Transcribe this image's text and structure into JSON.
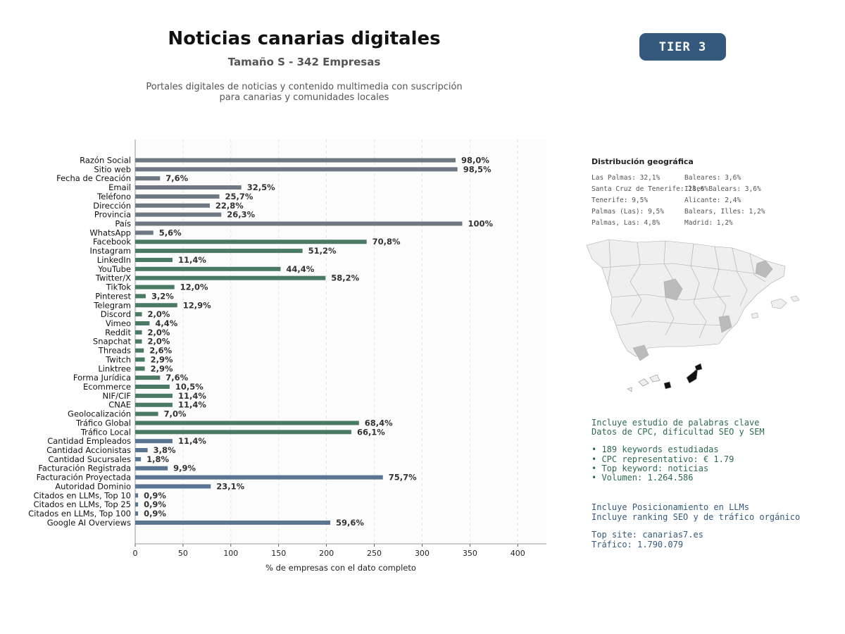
{
  "header": {
    "title": "Noticias canarias digitales",
    "subtitle": "Tamaño S - 342 Empresas",
    "description": "Portales digitales de noticias y contenido multimedia con suscripción\npara canarias y comunidades locales",
    "tier": "TIER 3"
  },
  "colors": {
    "group_basic": "#6e7883",
    "group_social": "#4a7a64",
    "group_business": "#5a7592",
    "badge": "#34597c",
    "info_green": "#2d6a4f",
    "info_blue": "#34597c",
    "map_highlight_dark": "#111111",
    "map_highlight_light": "#bbbbbb",
    "map_base": "#eeeeee"
  },
  "chart_data": {
    "type": "bar",
    "orientation": "horizontal",
    "xlabel": "% de empresas con el dato completo",
    "xlim": [
      0,
      430
    ],
    "xticks": [
      0,
      50,
      100,
      150,
      200,
      250,
      300,
      350,
      400
    ],
    "grid": "vertical dashed",
    "categories": [
      "Razón Social",
      "Sitio web",
      "Fecha de Creación",
      "Email",
      "Teléfono",
      "Dirección",
      "Provincia",
      "País",
      "WhatsApp",
      "Facebook",
      "Instagram",
      "LinkedIn",
      "YouTube",
      "Twitter/X",
      "TikTok",
      "Pinterest",
      "Telegram",
      "Discord",
      "Vimeo",
      "Reddit",
      "Snapchat",
      "Threads",
      "Twitch",
      "Linktree",
      "Forma Jurídica",
      "Ecommerce",
      "NIF/CIF",
      "CNAE",
      "Geolocalización",
      "Tráfico Global",
      "Tráfico Local",
      "Cantidad Empleados",
      "Cantidad Accionistas",
      "Cantidad Sucursales",
      "Facturación Registrada",
      "Facturación Proyectada",
      "Autoridad Dominio",
      "Citados en LLMs, Top 10",
      "Citados en LLMs, Top 25",
      "Citados en LLMs, Top 100",
      "Google AI Overviews"
    ],
    "values": [
      335,
      337,
      26,
      111,
      88,
      78,
      90,
      342,
      19,
      242,
      175,
      39,
      152,
      199,
      41,
      11,
      44,
      7,
      15,
      7,
      7,
      9,
      10,
      10,
      26,
      36,
      39,
      39,
      24,
      234,
      226,
      39,
      13,
      6,
      34,
      259,
      79,
      3,
      3,
      3,
      204
    ],
    "labels": [
      "98,0%",
      "98,5%",
      "7,6%",
      "32,5%",
      "25,7%",
      "22,8%",
      "26,3%",
      "100%",
      "5,6%",
      "70,8%",
      "51,2%",
      "11,4%",
      "44,4%",
      "58,2%",
      "12,0%",
      "3,2%",
      "12,9%",
      "2,0%",
      "4,4%",
      "2,0%",
      "2,0%",
      "2,6%",
      "2,9%",
      "2,9%",
      "7,6%",
      "10,5%",
      "11,4%",
      "11,4%",
      "7,0%",
      "68,4%",
      "66,1%",
      "11,4%",
      "3,8%",
      "1,8%",
      "9,9%",
      "75,7%",
      "23,1%",
      "0,9%",
      "0,9%",
      "0,9%",
      "59,6%"
    ],
    "groups": [
      "basic",
      "basic",
      "basic",
      "basic",
      "basic",
      "basic",
      "basic",
      "basic",
      "basic",
      "social",
      "social",
      "social",
      "social",
      "social",
      "social",
      "social",
      "social",
      "social",
      "social",
      "social",
      "social",
      "social",
      "social",
      "social",
      "social",
      "social",
      "social",
      "social",
      "social",
      "social",
      "social",
      "business",
      "business",
      "business",
      "business",
      "business",
      "business",
      "business",
      "business",
      "business",
      "business"
    ]
  },
  "geo": {
    "title": "Distribución geográfica",
    "left": [
      "Las Palmas: 32,1%",
      "Santa Cruz de Tenerife: 28,6%",
      "Tenerife: 9,5%",
      "Palmas (Las): 9,5%",
      "Palmas, Las: 4,8%"
    ],
    "right": [
      "Baleares: 3,6%",
      "Illes Balears: 3,6%",
      "Alicante: 2,4%",
      "Balears, Illes: 1,2%",
      "Madrid: 1,2%"
    ]
  },
  "keywords": {
    "line1": "Incluye estudio de palabras clave",
    "line2": "Datos de CPC, dificultad SEO y SEM",
    "bullets": [
      "• 189 keywords estudiadas",
      "• CPC representativo: € 1.79",
      "• Top keyword: noticias",
      "• Volumen: 1.264.586"
    ]
  },
  "llm": {
    "line1": "Incluye Posicionamiento en LLMs",
    "line2": "Incluye ranking SEO y de tráfico orgánico",
    "top_site": "Top site: canarias7.es",
    "traffic": "Tráfico: 1.790.079"
  }
}
